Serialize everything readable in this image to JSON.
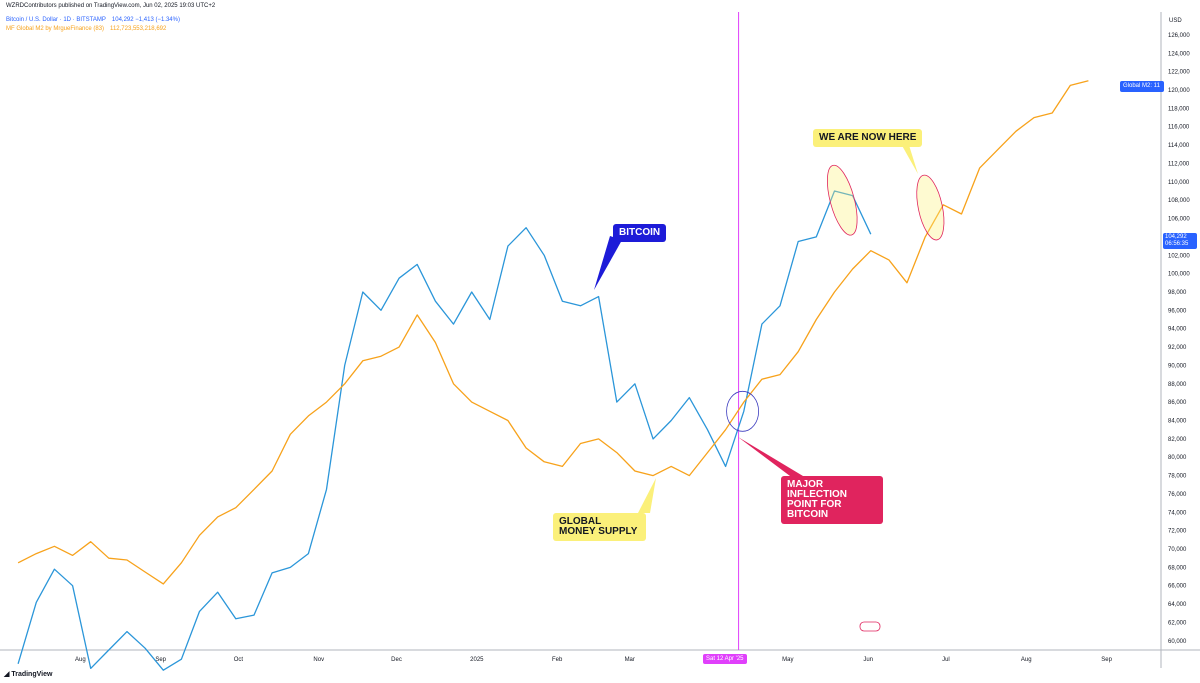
{
  "header": {
    "publisher": "WZRDContributors published on TradingView.com, Jun 02, 2025 19:03 UTC+2",
    "btc_label": "Bitcoin / U.S. Dollar · 1D · BITSTAMP",
    "btc_values": "104,292 −1,413 (−1.34%)",
    "m2_label": "MF Global M2 by MrgueFinance (83)",
    "m2_value": "112,723,553,218,692"
  },
  "footer": {
    "brand": "TradingView"
  },
  "colors": {
    "bitcoin": "#2b96d9",
    "m2": "#f7a21b",
    "vline": "#e040fb",
    "annotation": "#e0245e",
    "price_scale_text": "#131722"
  },
  "chart_data": {
    "type": "line",
    "y_unit": "USD",
    "ylim": [
      59000,
      128500
    ],
    "x_ticks": [
      "Aug",
      "Sep",
      "Oct",
      "Nov",
      "Dec",
      "2025",
      "Feb",
      "Mar",
      "Apr",
      "May",
      "Jun",
      "Jul",
      "Aug",
      "Sep"
    ],
    "y_ticks": [
      "60,000",
      "62,000",
      "64,000",
      "66,000",
      "68,000",
      "70,000",
      "72,000",
      "74,000",
      "76,000",
      "78,000",
      "80,000",
      "82,000",
      "84,000",
      "86,000",
      "88,000",
      "90,000",
      "92,000",
      "94,000",
      "96,000",
      "98,000",
      "100,000",
      "102,000",
      "104,000",
      "106,000",
      "108,000",
      "110,000",
      "112,000",
      "114,000",
      "116,000",
      "118,000",
      "120,000",
      "122,000",
      "124,000",
      "126,000"
    ],
    "series": [
      {
        "name": "Bitcoin / U.S. Dollar",
        "color": "#2b96d9",
        "x": [
          "2024-07-08",
          "2024-07-15",
          "2024-07-22",
          "2024-07-29",
          "2024-08-05",
          "2024-08-12",
          "2024-08-19",
          "2024-08-26",
          "2024-09-02",
          "2024-09-09",
          "2024-09-16",
          "2024-09-23",
          "2024-09-30",
          "2024-10-07",
          "2024-10-14",
          "2024-10-21",
          "2024-10-28",
          "2024-11-04",
          "2024-11-11",
          "2024-11-18",
          "2024-11-25",
          "2024-12-02",
          "2024-12-09",
          "2024-12-16",
          "2024-12-23",
          "2024-12-30",
          "2025-01-06",
          "2025-01-13",
          "2025-01-20",
          "2025-01-27",
          "2025-02-03",
          "2025-02-10",
          "2025-02-17",
          "2025-02-24",
          "2025-03-03",
          "2025-03-10",
          "2025-03-17",
          "2025-03-24",
          "2025-03-31",
          "2025-04-07",
          "2025-04-14",
          "2025-04-21",
          "2025-04-28",
          "2025-05-05",
          "2025-05-12",
          "2025-05-19",
          "2025-05-26",
          "2025-06-02"
        ],
        "values": [
          57500,
          64200,
          67800,
          66000,
          57000,
          59000,
          61000,
          59200,
          56800,
          58000,
          63200,
          65300,
          62400,
          62800,
          67400,
          68000,
          69500,
          76500,
          90000,
          98000,
          96000,
          99500,
          101000,
          97000,
          94500,
          98000,
          95000,
          103000,
          105000,
          102000,
          97000,
          96500,
          97500,
          86000,
          88000,
          82000,
          84000,
          86500,
          83000,
          79000,
          85000,
          94500,
          96500,
          103500,
          104000,
          109000,
          108500,
          104300
        ]
      },
      {
        "name": "MF Global M2",
        "color": "#f7a21b",
        "x": [
          "2024-07-08",
          "2024-07-15",
          "2024-07-22",
          "2024-07-29",
          "2024-08-05",
          "2024-08-12",
          "2024-08-19",
          "2024-08-26",
          "2024-09-02",
          "2024-09-09",
          "2024-09-16",
          "2024-09-23",
          "2024-09-30",
          "2024-10-07",
          "2024-10-14",
          "2024-10-21",
          "2024-10-28",
          "2024-11-04",
          "2024-11-11",
          "2024-11-18",
          "2024-11-25",
          "2024-12-02",
          "2024-12-09",
          "2024-12-16",
          "2024-12-23",
          "2024-12-30",
          "2025-01-06",
          "2025-01-13",
          "2025-01-20",
          "2025-01-27",
          "2025-02-03",
          "2025-02-10",
          "2025-02-17",
          "2025-02-24",
          "2025-03-03",
          "2025-03-10",
          "2025-03-17",
          "2025-03-24",
          "2025-03-31",
          "2025-04-07",
          "2025-04-14",
          "2025-04-21",
          "2025-04-28",
          "2025-05-05",
          "2025-05-12",
          "2025-05-19",
          "2025-05-26",
          "2025-06-02",
          "2025-06-09",
          "2025-06-16",
          "2025-06-23",
          "2025-06-30",
          "2025-07-07",
          "2025-07-14",
          "2025-07-21",
          "2025-07-28",
          "2025-08-04",
          "2025-08-11",
          "2025-08-18",
          "2025-08-25"
        ],
        "values": [
          68500,
          69500,
          70300,
          69300,
          70800,
          69000,
          68800,
          67500,
          66200,
          68500,
          71500,
          73500,
          74500,
          76500,
          78500,
          82500,
          84500,
          86000,
          88000,
          90500,
          91000,
          92000,
          95500,
          92500,
          88000,
          86000,
          85000,
          84000,
          81000,
          79500,
          79000,
          81500,
          82000,
          80500,
          78500,
          78000,
          79000,
          78000,
          80500,
          83000,
          86000,
          88500,
          89000,
          91500,
          95000,
          98000,
          100500,
          102500,
          101500,
          99000,
          104000,
          107500,
          106500,
          111500,
          113500,
          115500,
          117000,
          117500,
          120500,
          121000
        ]
      }
    ],
    "annotations": [
      {
        "text": "BITCOIN"
      },
      {
        "text": "WE ARE NOW HERE"
      },
      {
        "text": "MAJOR INFLECTION POINT FOR BITCOIN"
      },
      {
        "text": "GLOBAL MONEY SUPPLY"
      }
    ],
    "vertical_marker": {
      "label": "Sat 12 Apr '25"
    },
    "last_value_tags": {
      "m2": "Global M2: 11",
      "btc": "104,292",
      "btc_countdown": "06:56:35"
    },
    "legend": "top-left",
    "grid": false
  }
}
